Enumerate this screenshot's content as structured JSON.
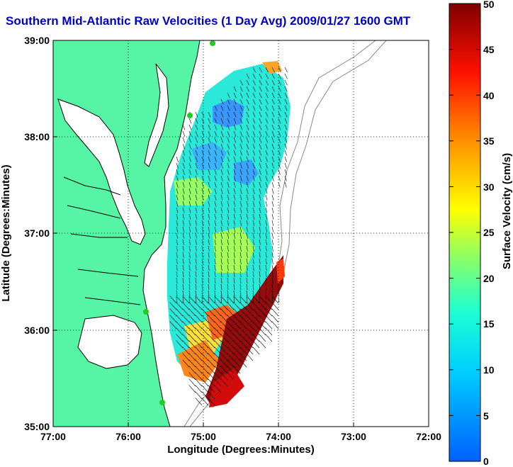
{
  "title": "Southern Mid-Atlantic Raw Velocities (1 Day Avg) 2009/01/27 1600 GMT",
  "map": {
    "xlabel": "Longitude (Degrees:Minutes)",
    "ylabel": "Latitude (Degrees:Minutes)",
    "lon_ticks": [
      "77:00",
      "76:00",
      "75:00",
      "74:00",
      "73:00",
      "72:00"
    ],
    "lat_ticks": [
      "39:00",
      "38:00",
      "37:00",
      "36:00",
      "35:00"
    ],
    "lon_range": [
      -77,
      -72
    ],
    "lat_range": [
      35,
      39
    ],
    "grid": true,
    "colors": {
      "land": "#55f5a5",
      "water": "#ffffff",
      "coast": "#000000",
      "bathymetry": "#888888",
      "station": "#22cc22"
    }
  },
  "colorbar": {
    "label": "Surface Velocity (cm/s)",
    "ticks": [
      "50",
      "45",
      "40",
      "35",
      "30",
      "25",
      "20",
      "15",
      "10",
      "5",
      "0"
    ],
    "range": [
      0,
      50
    ]
  }
}
